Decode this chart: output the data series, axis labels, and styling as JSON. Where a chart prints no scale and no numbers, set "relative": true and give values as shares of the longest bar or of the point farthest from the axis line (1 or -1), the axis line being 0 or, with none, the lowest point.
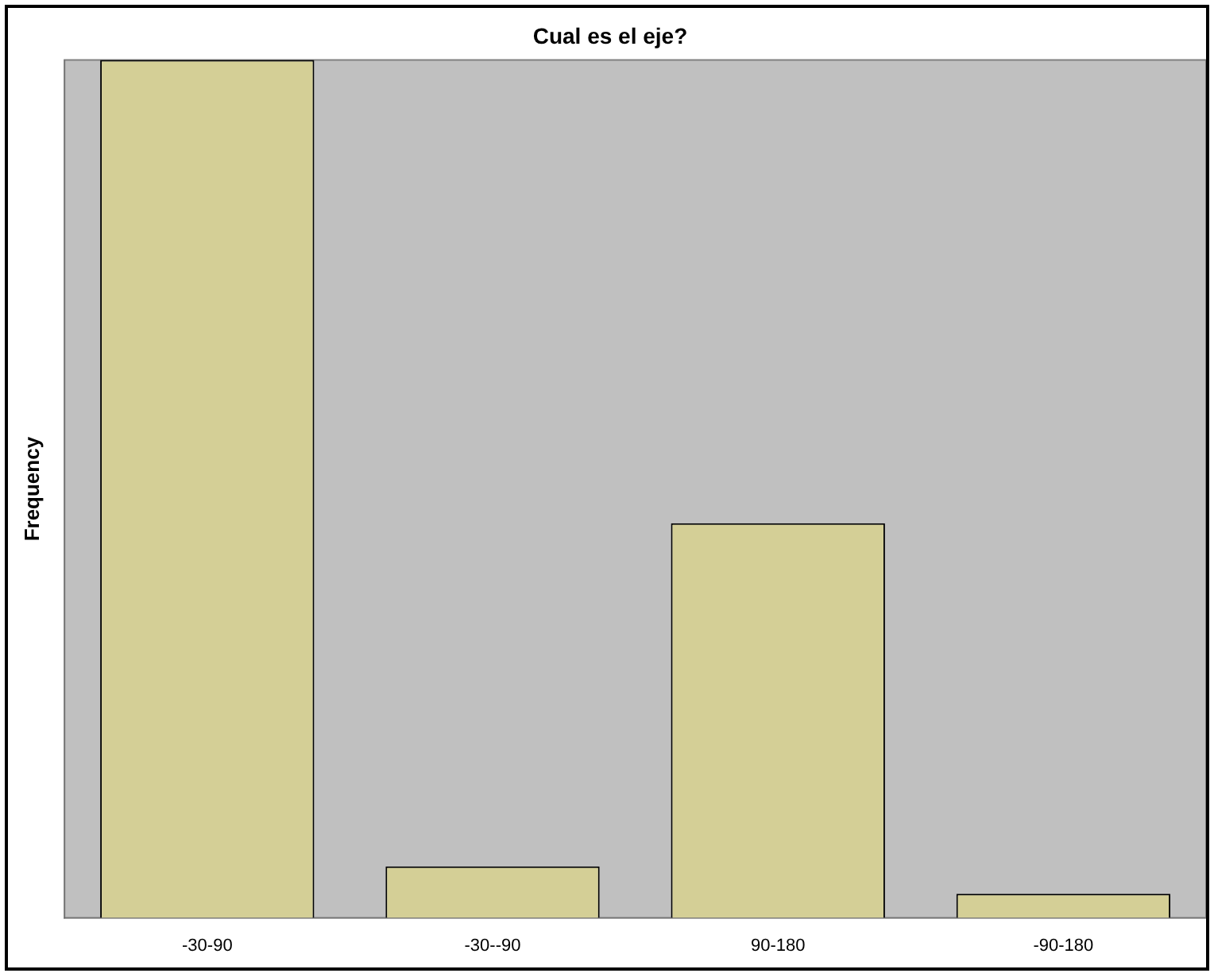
{
  "chart_data": {
    "type": "bar",
    "title": "Cual es el eje?",
    "ylabel": "Frequency",
    "relative": true,
    "categories": [
      "-30-90",
      "-30--90",
      "90-180",
      "-90-180"
    ],
    "values": [
      1,
      0.06,
      0.46,
      0.028
    ],
    "color": "#d4cf96",
    "grid": false,
    "legend": false
  }
}
